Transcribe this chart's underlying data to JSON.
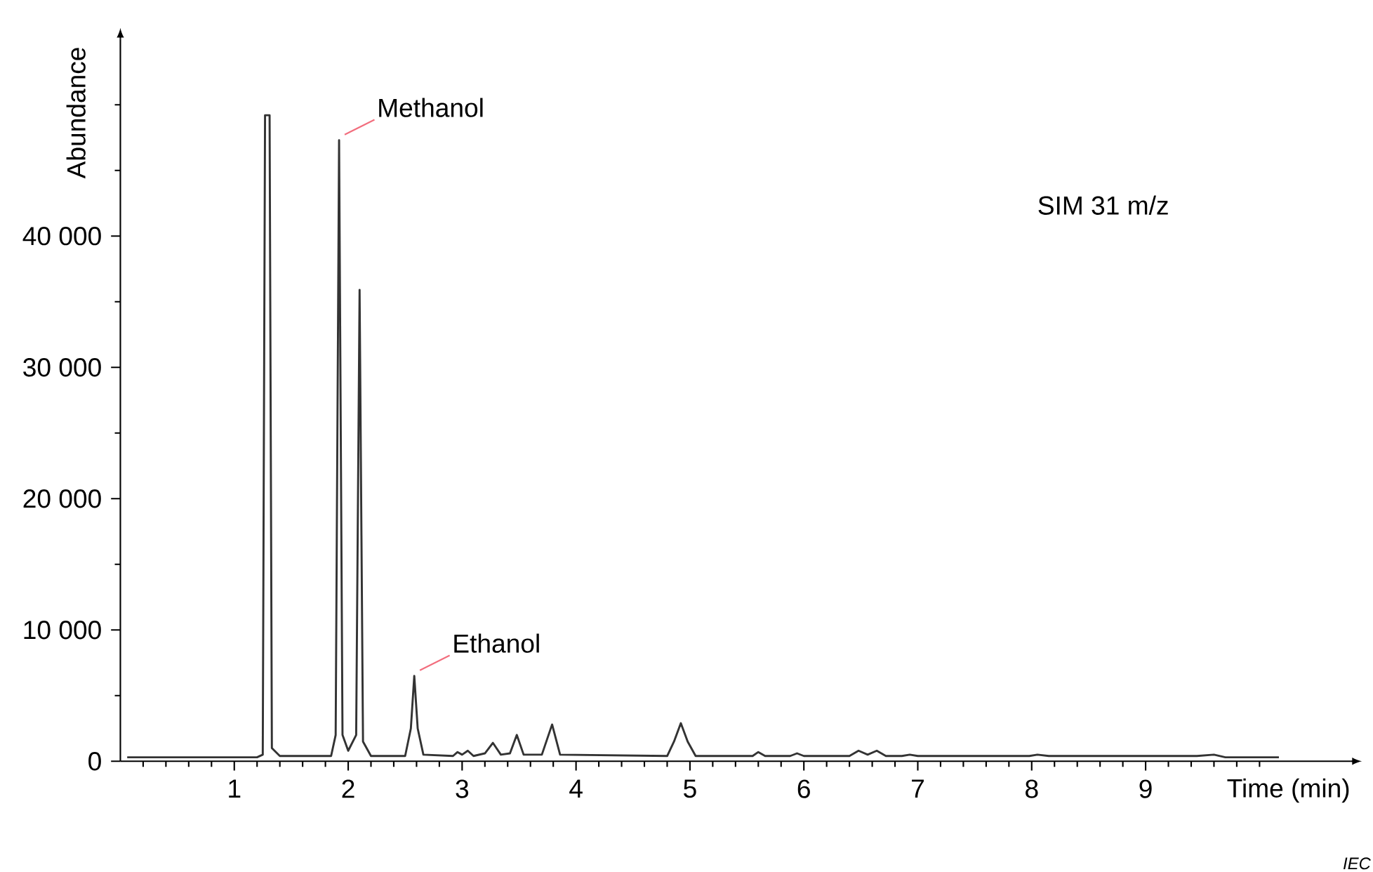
{
  "chart_data": {
    "type": "line",
    "xlabel": "Time (min)",
    "ylabel": "Abundance",
    "x": [
      0.06,
      1.2,
      1.25,
      1.27,
      1.31,
      1.33,
      1.4,
      1.85,
      1.89,
      1.92,
      1.95,
      2.0,
      2.07,
      2.1,
      2.13,
      2.2,
      2.5,
      2.55,
      2.58,
      2.61,
      2.66,
      2.92,
      2.96,
      3.0,
      3.05,
      3.1,
      3.2,
      3.27,
      3.34,
      3.42,
      3.48,
      3.54,
      3.7,
      3.79,
      3.86,
      4.8,
      4.86,
      4.92,
      4.98,
      5.05,
      5.55,
      5.6,
      5.66,
      5.88,
      5.94,
      6.0,
      6.4,
      6.48,
      6.56,
      6.64,
      6.72,
      6.86,
      6.93,
      7.0,
      7.98,
      8.05,
      8.15,
      9.45,
      9.6,
      9.7,
      10.17
    ],
    "series": [
      {
        "color": "#333333",
        "values": [
          300,
          300,
          500,
          49200,
          49200,
          1000,
          400,
          400,
          2000,
          47300,
          2000,
          800,
          2000,
          35900,
          1500,
          400,
          400,
          2500,
          6500,
          2500,
          500,
          400,
          700,
          500,
          800,
          400,
          600,
          1400,
          500,
          600,
          2000,
          500,
          500,
          2800,
          500,
          400,
          1500,
          2900,
          1500,
          400,
          400,
          700,
          400,
          400,
          600,
          400,
          400,
          800,
          500,
          800,
          400,
          400,
          500,
          400,
          400,
          500,
          400,
          400,
          500,
          300,
          300
        ]
      }
    ],
    "xlim": [
      0,
      10.8
    ],
    "ylim": [
      0,
      55000
    ],
    "xticks": [
      {
        "value": 0.2,
        "label": null
      },
      {
        "value": 0.4,
        "label": null
      },
      {
        "value": 0.6,
        "label": null
      },
      {
        "value": 0.8,
        "label": null
      },
      1,
      {
        "value": 1.2,
        "label": null
      },
      {
        "value": 1.4,
        "label": null
      },
      {
        "value": 1.6,
        "label": null
      },
      {
        "value": 1.8,
        "label": null
      },
      2,
      {
        "value": 2.2,
        "label": null
      },
      {
        "value": 2.4,
        "label": null
      },
      {
        "value": 2.6,
        "label": null
      },
      {
        "value": 2.8,
        "label": null
      },
      3,
      {
        "value": 3.2,
        "label": null
      },
      {
        "value": 3.4,
        "label": null
      },
      {
        "value": 3.6,
        "label": null
      },
      {
        "value": 3.8,
        "label": null
      },
      4,
      {
        "value": 4.2,
        "label": null
      },
      {
        "value": 4.4,
        "label": null
      },
      {
        "value": 4.6,
        "label": null
      },
      {
        "value": 4.8,
        "label": null
      },
      5,
      {
        "value": 5.2,
        "label": null
      },
      {
        "value": 5.4,
        "label": null
      },
      {
        "value": 5.6,
        "label": null
      },
      {
        "value": 5.8,
        "label": null
      },
      6,
      {
        "value": 6.2,
        "label": null
      },
      {
        "value": 6.4,
        "label": null
      },
      {
        "value": 6.6,
        "label": null
      },
      {
        "value": 6.8,
        "label": null
      },
      7,
      {
        "value": 7.2,
        "label": null
      },
      {
        "value": 7.4,
        "label": null
      },
      {
        "value": 7.6,
        "label": null
      },
      {
        "value": 7.8,
        "label": null
      },
      8,
      {
        "value": 8.2,
        "label": null
      },
      {
        "value": 8.4,
        "label": null
      },
      {
        "value": 8.6,
        "label": null
      },
      {
        "value": 8.8,
        "label": null
      },
      9,
      {
        "value": 9.2,
        "label": null
      },
      {
        "value": 9.4,
        "label": null
      },
      {
        "value": 9.6,
        "label": null
      },
      {
        "value": 9.8,
        "label": null
      },
      {
        "value": 10,
        "label": null
      }
    ],
    "yticks": [
      0,
      {
        "value": 5000,
        "label": null
      },
      {
        "value": 10000,
        "label": "10 000"
      },
      {
        "value": 15000,
        "label": null
      },
      {
        "value": 20000,
        "label": "20 000"
      },
      {
        "value": 25000,
        "label": null
      },
      {
        "value": 30000,
        "label": "30 000"
      },
      {
        "value": 35000,
        "label": null
      },
      {
        "value": 40000,
        "label": "40 000"
      },
      {
        "value": 45000,
        "label": null
      },
      {
        "value": 50000,
        "label": null
      }
    ],
    "annotations": [
      {
        "text": "Methanol",
        "x": 1.92,
        "y": 47300
      },
      {
        "text": "Ethanol",
        "x": 2.58,
        "y": 6500
      },
      "SIM 31 m/z",
      "IEC"
    ]
  }
}
